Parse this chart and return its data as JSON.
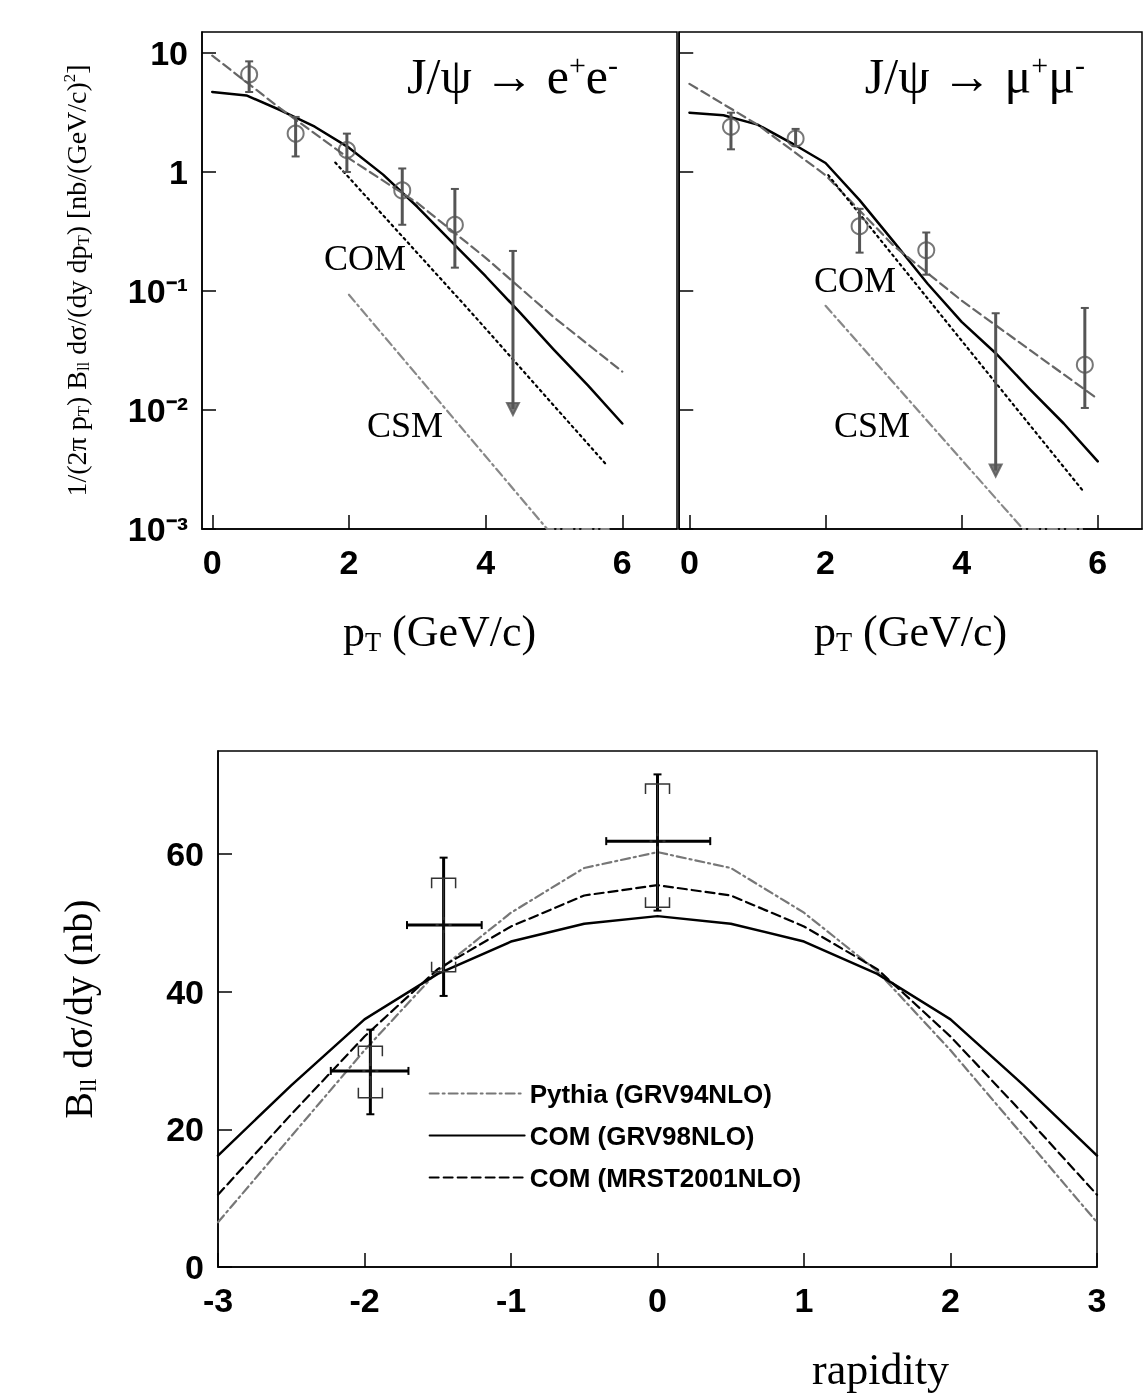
{
  "chart_data": [
    {
      "type": "line",
      "title": "J/ψ → e$^{+}$e$^{-}$",
      "xlabel": "p$_{T}$ (GeV/c)",
      "ylabel": "1/(2π p$_{T}$) B$_{ll}$ dσ/(dy dp$_{T}$) [nb/(GeV/c)$^{2}$]",
      "log": "y",
      "xlim": [
        -0.15,
        6.8
      ],
      "xticks": [
        0,
        2,
        4,
        6
      ],
      "ylim": [
        0.001,
        15
      ],
      "yticks": [
        10,
        1,
        {
          "value": 0.1,
          "label": "10⁻¹"
        },
        {
          "value": 0.01,
          "label": "10⁻²"
        },
        {
          "value": 0.001,
          "label": "10⁻³"
        }
      ],
      "grid": false,
      "legend": false,
      "annotations": [
        "COM",
        "CSM"
      ],
      "series": [
        {
          "type": "scatter",
          "color": "#555555",
          "marker": "circle",
          "x": [
            0.54,
            1.22,
            1.97,
            2.78,
            3.55
          ],
          "values": [
            6.6,
            2.1,
            1.53,
            0.7,
            0.36
          ],
          "errors": [
            [
              4.7,
              8.5
            ],
            [
              1.35,
              2.9
            ],
            [
              1.0,
              2.1
            ],
            [
              0.36,
              1.07
            ],
            [
              0.157,
              0.72
            ]
          ]
        },
        {
          "type": "scatter",
          "color": "#555555",
          "marker": "triangle",
          "x": [
            4.4
          ],
          "values": [
            0.0102
          ],
          "errors": [
            [
              0.0102,
              0.217
            ]
          ]
        },
        {
          "type": "line",
          "color": "#000000",
          "line_style": "solid",
          "x": [
            0,
            0.5,
            1,
            1.5,
            2,
            2.5,
            3,
            3.5,
            4,
            4.5,
            5,
            5.5,
            6
          ],
          "values": [
            4.7,
            4.4,
            3.3,
            2.4,
            1.6,
            0.95,
            0.51,
            0.26,
            0.133,
            0.066,
            0.032,
            0.016,
            0.0077
          ]
        },
        {
          "type": "line",
          "color": "#666666",
          "line_style": "dashed",
          "x": [
            0,
            1,
            2,
            3,
            4,
            5,
            6
          ],
          "values": [
            9.5,
            3.4,
            1.3,
            0.55,
            0.19,
            0.06,
            0.021
          ]
        },
        {
          "type": "line",
          "color": "#000000",
          "line_style": "dotted",
          "x": [
            1.8,
            3.8,
            5.76
          ],
          "values": [
            1.2,
            0.065,
            0.0035
          ]
        },
        {
          "type": "line",
          "color": "#888888",
          "line_style": "dashdot",
          "x": [
            2.0,
            4.9,
            5.8
          ],
          "values": [
            0.093,
            0.001,
            0.001
          ]
        }
      ]
    },
    {
      "type": "line",
      "title": "J/ψ → μ$^{+}$μ$^{-}$",
      "xlabel": "p$_{T}$ (GeV/c)",
      "log": "y",
      "xlim": [
        -0.15,
        6.65
      ],
      "xticks": [
        0,
        2,
        4,
        6
      ],
      "ylim": [
        0.001,
        15
      ],
      "yticks": [
        10,
        1,
        0.1,
        0.01,
        0.001
      ],
      "tick_labels": "x",
      "grid": false,
      "legend": false,
      "annotations": [
        "COM",
        "CSM"
      ],
      "series": [
        {
          "type": "scatter",
          "color": "#555555",
          "marker": "circle",
          "x": [
            0.61,
            1.56,
            2.5,
            3.48,
            5.81
          ],
          "values": [
            2.4,
            1.91,
            0.35,
            0.22,
            0.024
          ],
          "errors": [
            [
              1.55,
              3.15
            ],
            [
              1.65,
              2.3
            ],
            [
              0.21,
              0.49
            ],
            [
              0.137,
              0.31
            ],
            [
              0.0104,
              0.072
            ]
          ]
        },
        {
          "type": "scatter",
          "color": "#555555",
          "marker": "triangle",
          "x": [
            4.5
          ],
          "values": [
            0.0031
          ],
          "errors": [
            [
              0.0031,
              0.065
            ]
          ]
        },
        {
          "type": "line",
          "color": "#000000",
          "line_style": "solid",
          "x": [
            0,
            0.5,
            1,
            1.5,
            2,
            2.5,
            3,
            3.5,
            4,
            4.5,
            5,
            5.5,
            6
          ],
          "values": [
            3.15,
            3.0,
            2.5,
            1.75,
            1.19,
            0.58,
            0.26,
            0.115,
            0.055,
            0.03,
            0.015,
            0.0077,
            0.0037
          ]
        },
        {
          "type": "line",
          "color": "#666666",
          "line_style": "dashed",
          "x": [
            0,
            1,
            2,
            3,
            4,
            5,
            6
          ],
          "values": [
            5.5,
            2.5,
            0.94,
            0.24,
            0.083,
            0.032,
            0.0124
          ]
        },
        {
          "type": "line",
          "color": "#000000",
          "line_style": "dotted",
          "x": [
            2.04,
            3.9,
            5.78
          ],
          "values": [
            0.94,
            0.045,
            0.0021
          ]
        },
        {
          "type": "line",
          "color": "#888888",
          "line_style": "dashdot",
          "x": [
            2.0,
            4.9,
            5.8
          ],
          "values": [
            0.075,
            0.001,
            0.001
          ]
        }
      ]
    },
    {
      "type": "line",
      "xlabel": "rapidity",
      "ylabel": "B$_{ll}$ dσ/dy (nb)",
      "xlim": [
        -3,
        3
      ],
      "xticks": [
        -3,
        -2,
        -1,
        0,
        1,
        2,
        3
      ],
      "ylim": [
        0,
        75
      ],
      "yticks": [
        0,
        20,
        40,
        60
      ],
      "grid": false,
      "legend": "bottom",
      "series": [
        {
          "name": "Pythia (GRV94NLO)",
          "color": "#777777",
          "line_style": "dashdot",
          "x": [
            -3,
            -2.5,
            -2,
            -1.5,
            -1,
            -0.5,
            0,
            0.5,
            1,
            1.5,
            2,
            2.5,
            3
          ],
          "values": [
            6.5,
            19.0,
            31.5,
            43.0,
            51.5,
            58.0,
            60.3,
            58.0,
            51.5,
            43.0,
            31.5,
            19.0,
            6.5
          ]
        },
        {
          "name": "COM (GRV98NLO)",
          "color": "#000000",
          "line_style": "solid",
          "x": [
            -3,
            -2.5,
            -2,
            -1.5,
            -1,
            -0.5,
            0,
            0.5,
            1,
            1.5,
            2,
            2.5,
            3
          ],
          "values": [
            16.2,
            26.4,
            36.0,
            42.6,
            47.3,
            49.9,
            51.0,
            49.9,
            47.3,
            42.6,
            36.0,
            26.4,
            16.2
          ]
        },
        {
          "name": "COM (MRST2001NLO)",
          "color": "#000000",
          "line_style": "dashed",
          "x": [
            -3,
            -2.5,
            -2,
            -1.5,
            -1,
            -0.5,
            0,
            0.5,
            1,
            1.5,
            2,
            2.5,
            3
          ],
          "values": [
            10.5,
            22.2,
            33.5,
            43.3,
            49.5,
            54.0,
            55.5,
            54.0,
            49.5,
            43.3,
            33.5,
            22.2,
            10.5
          ]
        },
        {
          "type": "scatter",
          "color": "#000000",
          "marker": "cross",
          "x": [
            -1.96,
            -1.46,
            0
          ],
          "values": [
            28.5,
            49.7,
            61.9
          ],
          "errors": [
            [
              22.2,
              34.5
            ],
            [
              39.4,
              59.5
            ],
            [
              51.8,
              71.6
            ]
          ],
          "xerrors": [
            [
              -2.23,
              -1.7
            ],
            [
              -1.71,
              -1.2
            ],
            [
              -0.35,
              0.36
            ]
          ]
        },
        {
          "type": "scatter",
          "color": "#333333",
          "marker": "cross",
          "x": [
            -1.96,
            -1.46,
            0
          ],
          "values": [
            28.5,
            49.7,
            61.9
          ],
          "errors": [
            [
              24.6,
              32.1
            ],
            [
              42.9,
              56.5
            ],
            [
              52.3,
              70.2
            ]
          ]
        }
      ]
    }
  ]
}
